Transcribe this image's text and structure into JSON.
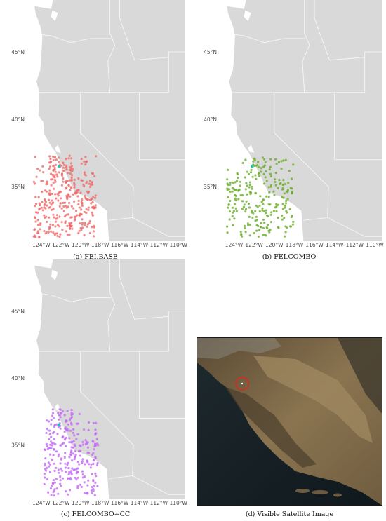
{
  "figure": {
    "colors": {
      "land": "#d9d9d9",
      "border": "#f7f7f7",
      "panel_bg": "#ffffff",
      "axis_text": "#4d4d4d",
      "target": "#29c3b5",
      "base": "#ef6b6b",
      "combo": "#6cad2b",
      "combo_cc": "#c26af5",
      "satellite_circle": "#e0261b"
    },
    "lat_ticks": [
      "45°N",
      "40°N",
      "35°N"
    ],
    "lon_ticks": [
      "124°W",
      "122°W",
      "120°W",
      "118°W",
      "116°W",
      "114°W",
      "112°W",
      "110°W"
    ],
    "panels": [
      {
        "caption": "(a) FEI.BASE",
        "color_key": "base"
      },
      {
        "caption": "(b) FEI.COMBO",
        "color_key": "combo"
      },
      {
        "caption": "(c) FEI.COMBO+CC",
        "color_key": "combo_cc"
      }
    ],
    "satellite": {
      "caption": "(d) Visible Satellite Image"
    }
  }
}
